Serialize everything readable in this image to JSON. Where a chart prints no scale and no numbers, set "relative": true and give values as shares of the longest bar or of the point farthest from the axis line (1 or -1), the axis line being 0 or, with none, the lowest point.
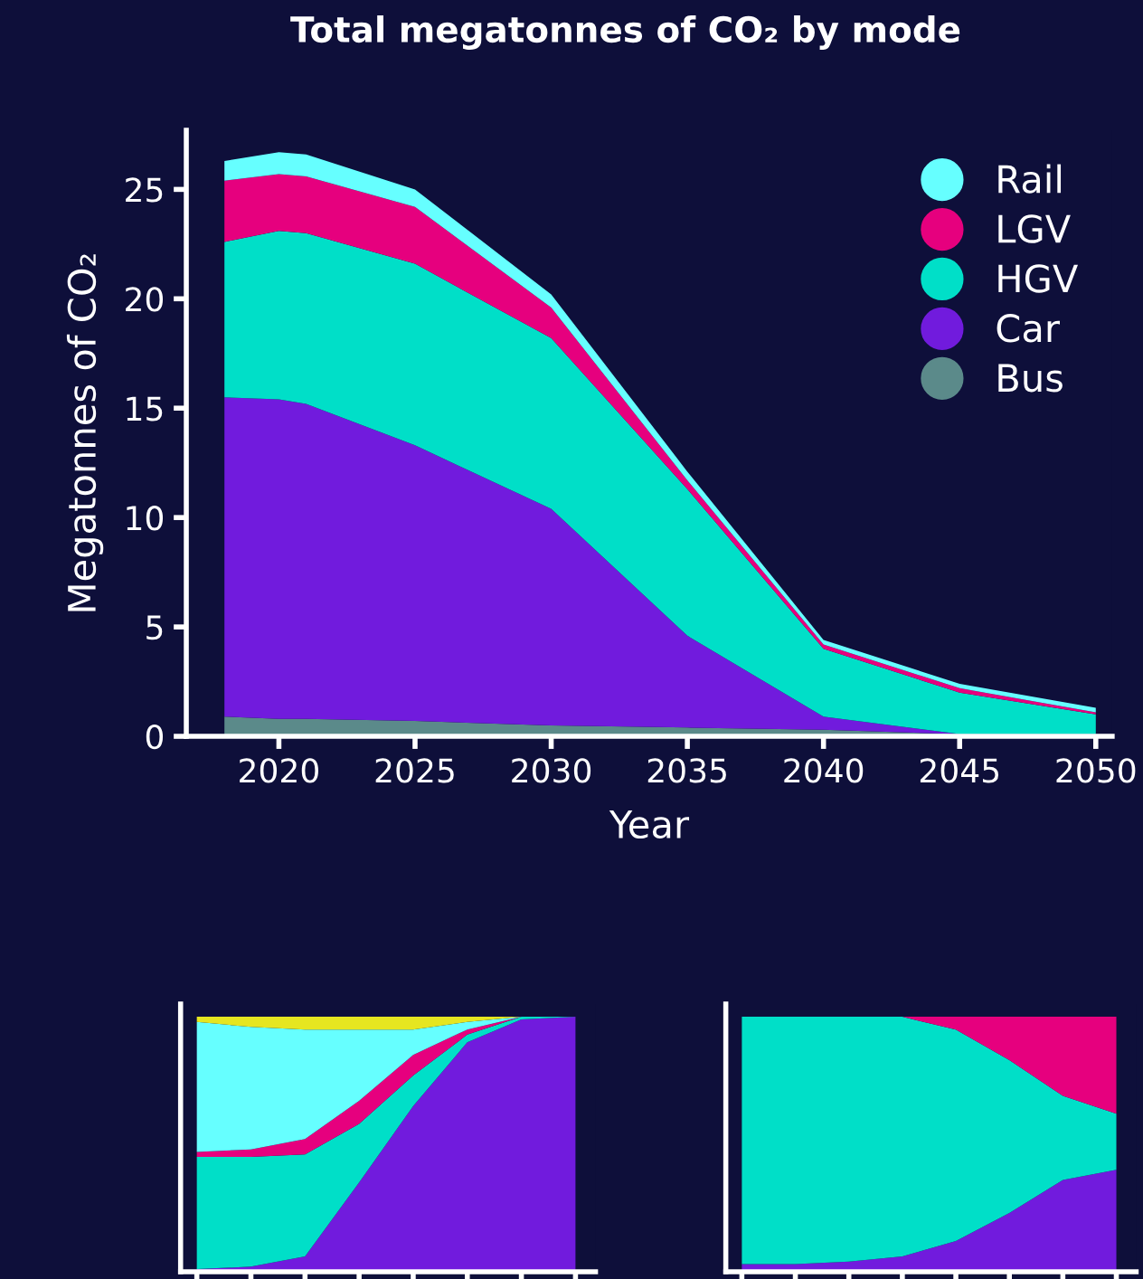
{
  "chart_data": [
    {
      "type": "area",
      "stacked": true,
      "title": "Total megatonnes of CO₂ by mode",
      "xlabel": "Year",
      "ylabel": "Megatonnes of CO₂",
      "legend": "top right",
      "x": [
        2018,
        2020,
        2021,
        2025,
        2030,
        2035,
        2040,
        2045,
        2050
      ],
      "xlim": [
        2016.6,
        2050.6
      ],
      "xticks": [
        2020,
        2025,
        2030,
        2035,
        2040,
        2045,
        2050
      ],
      "ylim": [
        0,
        27.7
      ],
      "yticks": [
        0,
        5,
        10,
        15,
        20,
        25
      ],
      "series": [
        {
          "name": "Bus",
          "color": "#5b8a8a",
          "values": [
            0.9,
            0.8,
            0.8,
            0.7,
            0.5,
            0.4,
            0.3,
            0.1,
            0.1
          ]
        },
        {
          "name": "Car",
          "color": "#711bdd",
          "values": [
            14.6,
            14.6,
            14.4,
            12.6,
            9.9,
            4.2,
            0.6,
            0.0,
            0.0
          ]
        },
        {
          "name": "HGV",
          "color": "#00dfc8",
          "values": [
            7.1,
            7.7,
            7.8,
            8.3,
            7.8,
            6.7,
            3.1,
            1.9,
            0.9
          ]
        },
        {
          "name": "LGV",
          "color": "#e6007e",
          "values": [
            2.8,
            2.6,
            2.6,
            2.6,
            1.4,
            0.4,
            0.2,
            0.2,
            0.1
          ]
        },
        {
          "name": "Rail",
          "color": "#66ffff",
          "values": [
            0.9,
            1.0,
            1.0,
            0.8,
            0.6,
            0.4,
            0.2,
            0.2,
            0.2
          ]
        }
      ]
    },
    {
      "type": "area",
      "stacked": true,
      "relative": true,
      "categories": [
        null,
        null,
        null,
        null,
        null,
        null,
        null,
        null
      ],
      "series": [
        {
          "color": "#711bdd",
          "values": [
            0.01,
            0.02,
            0.06,
            0.35,
            0.65,
            0.9,
            0.99,
            1.0
          ]
        },
        {
          "color": "#00dfc8",
          "values": [
            0.44,
            0.43,
            0.4,
            0.23,
            0.12,
            0.03,
            0.01,
            0.0
          ]
        },
        {
          "color": "#e6007e",
          "values": [
            0.02,
            0.03,
            0.06,
            0.09,
            0.08,
            0.02,
            0.0,
            0.0
          ]
        },
        {
          "color": "#66ffff",
          "values": [
            0.51,
            0.48,
            0.43,
            0.28,
            0.1,
            0.03,
            0.0,
            0.0
          ]
        },
        {
          "color": "#e6e620",
          "values": [
            0.02,
            0.04,
            0.05,
            0.05,
            0.05,
            0.02,
            0.0,
            0.0
          ]
        }
      ]
    },
    {
      "type": "area",
      "stacked": true,
      "relative": true,
      "categories": [
        null,
        null,
        null,
        null,
        null,
        null,
        null,
        null
      ],
      "series": [
        {
          "color": "#711bdd",
          "values": [
            0.03,
            0.03,
            0.04,
            0.06,
            0.12,
            0.23,
            0.36,
            0.4
          ]
        },
        {
          "color": "#00dfc8",
          "values": [
            0.97,
            0.97,
            0.96,
            0.94,
            0.83,
            0.6,
            0.33,
            0.22
          ]
        },
        {
          "color": "#e6007e",
          "values": [
            0.0,
            0.0,
            0.0,
            0.0,
            0.05,
            0.17,
            0.31,
            0.38
          ]
        }
      ]
    }
  ]
}
